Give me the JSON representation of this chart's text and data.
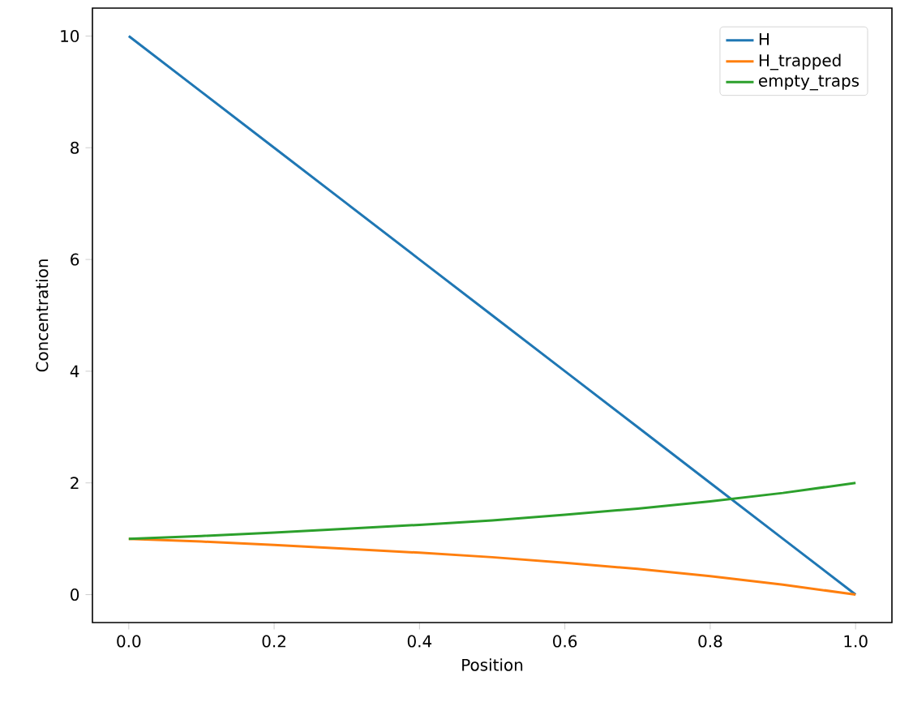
{
  "chart_data": {
    "type": "line",
    "xlabel": "Position",
    "ylabel": "Concentration",
    "x": [
      0.0,
      0.1,
      0.2,
      0.3,
      0.4,
      0.5,
      0.6,
      0.7,
      0.8,
      0.9,
      1.0
    ],
    "series": [
      {
        "name": "H",
        "color": "#1f77b4",
        "values": [
          10,
          9,
          8,
          7,
          6,
          5,
          4,
          3,
          2,
          1,
          0
        ]
      },
      {
        "name": "H_trapped",
        "color": "#ff7f0e",
        "values": [
          1.0,
          0.95,
          0.89,
          0.82,
          0.75,
          0.67,
          0.57,
          0.46,
          0.33,
          0.18,
          0.0
        ]
      },
      {
        "name": "empty_traps",
        "color": "#2ca02c",
        "values": [
          1.0,
          1.05,
          1.11,
          1.18,
          1.25,
          1.33,
          1.43,
          1.54,
          1.67,
          1.82,
          2.0
        ]
      }
    ],
    "xlim": [
      -0.05,
      1.05
    ],
    "ylim": [
      -0.5,
      10.5
    ],
    "xticks": [
      {
        "value": 0,
        "label": "0.0"
      },
      {
        "value": 0.2,
        "label": "0.2"
      },
      {
        "value": 0.4,
        "label": "0.4"
      },
      {
        "value": 0.6,
        "label": "0.6"
      },
      {
        "value": 0.8,
        "label": "0.8"
      },
      {
        "value": 1,
        "label": "1.0"
      }
    ],
    "yticks": [
      0,
      2,
      4,
      6,
      8,
      10
    ],
    "legend": "top right",
    "grid": false,
    "marker": "none",
    "line_style": "solid"
  }
}
